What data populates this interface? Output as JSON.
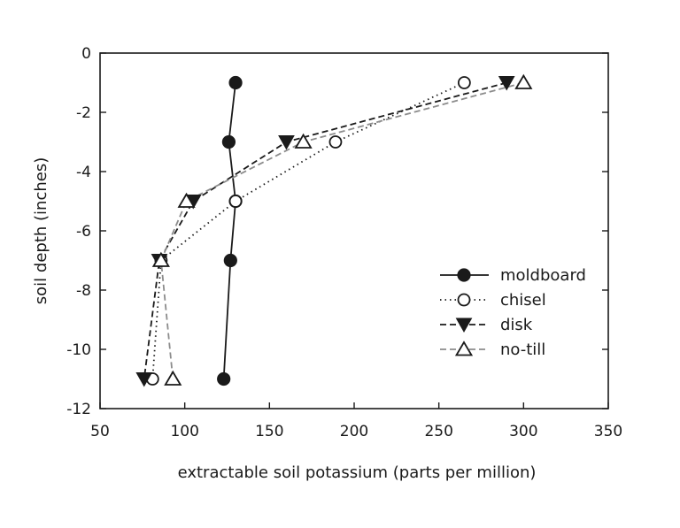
{
  "chart_data": {
    "type": "line",
    "title": "",
    "xlabel": "extractable soil potassium (parts per million)",
    "ylabel": "soil depth (inches)",
    "xlim": [
      50,
      350
    ],
    "ylim": [
      -12,
      0
    ],
    "xticks": [
      50,
      100,
      150,
      200,
      250,
      300,
      350
    ],
    "yticks": [
      0,
      -2,
      -4,
      -6,
      -8,
      -10,
      -12
    ],
    "xtick_labels": [
      "50",
      "100",
      "150",
      "200",
      "250",
      "300",
      "350"
    ],
    "ytick_labels": [
      "0",
      "-2",
      "-4",
      "-6",
      "-8",
      "-10",
      "-12"
    ],
    "grid": false,
    "legend_position": "lower-right",
    "series": [
      {
        "name": "moldboard",
        "marker": "filled-circle",
        "line": "solid",
        "color": "#1a1a1a",
        "points": [
          [
            130,
            -1
          ],
          [
            126,
            -3
          ],
          [
            130,
            -5
          ],
          [
            127,
            -7
          ],
          [
            123,
            -11
          ]
        ]
      },
      {
        "name": "chisel",
        "marker": "open-circle",
        "line": "dotted",
        "color": "#1a1a1a",
        "points": [
          [
            265,
            -1
          ],
          [
            189,
            -3
          ],
          [
            130,
            -5
          ],
          [
            86,
            -7
          ],
          [
            81,
            -11
          ]
        ]
      },
      {
        "name": "disk",
        "marker": "filled-triangle-down",
        "line": "dashed",
        "color": "#1a1a1a",
        "points": [
          [
            290,
            -1
          ],
          [
            160,
            -3
          ],
          [
            105,
            -5
          ],
          [
            85,
            -7
          ],
          [
            76,
            -11
          ]
        ]
      },
      {
        "name": "no-till",
        "marker": "open-triangle-up",
        "line": "dashed",
        "color": "#8c8c8c",
        "points": [
          [
            300,
            -1
          ],
          [
            170,
            -3
          ],
          [
            101,
            -5
          ],
          [
            86,
            -7
          ],
          [
            93,
            -11
          ]
        ]
      }
    ]
  }
}
